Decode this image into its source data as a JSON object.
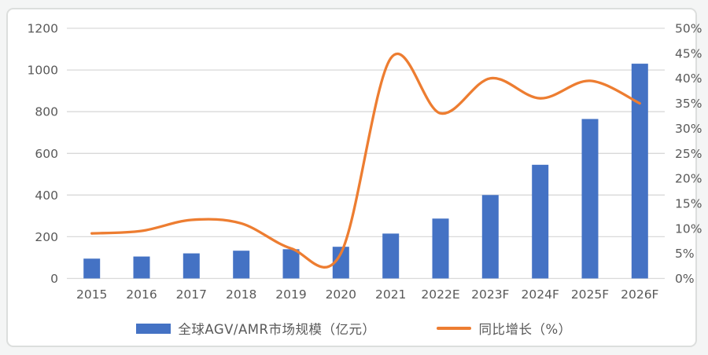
{
  "page": {
    "background": "#f4f5f5",
    "panel_background": "#ffffff",
    "panel_border_color": "#dcdedd",
    "text_color": "#595959",
    "grid_color": "#d9d9d9"
  },
  "chart_data": {
    "type": "bar",
    "subtype": "combo-bar-line-dual-axis",
    "title": "",
    "categories": [
      "2015",
      "2016",
      "2017",
      "2018",
      "2019",
      "2020",
      "2021",
      "2022E",
      "2023F",
      "2024F",
      "2025F",
      "2026F"
    ],
    "series": [
      {
        "name": "全球AGV/AMR市场规模（亿元）",
        "chart_type": "bar",
        "axis": "left",
        "color": "#4472C4",
        "values": [
          95,
          105,
          120,
          133,
          140,
          152,
          215,
          287,
          400,
          545,
          765,
          1030
        ]
      },
      {
        "name": "同比增长（%）",
        "chart_type": "line",
        "axis": "right",
        "color": "#ED7D31",
        "line_style": "smooth",
        "values": [
          9,
          9.5,
          11.7,
          11,
          6,
          5,
          44,
          33,
          40,
          36,
          39.5,
          35
        ]
      }
    ],
    "left_axis": {
      "min": 0,
      "max": 1200,
      "step": 200,
      "tick_labels": [
        "0",
        "200",
        "400",
        "600",
        "800",
        "1000",
        "1200"
      ]
    },
    "right_axis": {
      "min": 0,
      "max": 50,
      "step": 5,
      "tick_labels": [
        "0%",
        "5%",
        "10%",
        "15%",
        "20%",
        "25%",
        "30%",
        "35%",
        "40%",
        "45%",
        "50%"
      ]
    },
    "grid": true,
    "legend_position": "bottom"
  }
}
